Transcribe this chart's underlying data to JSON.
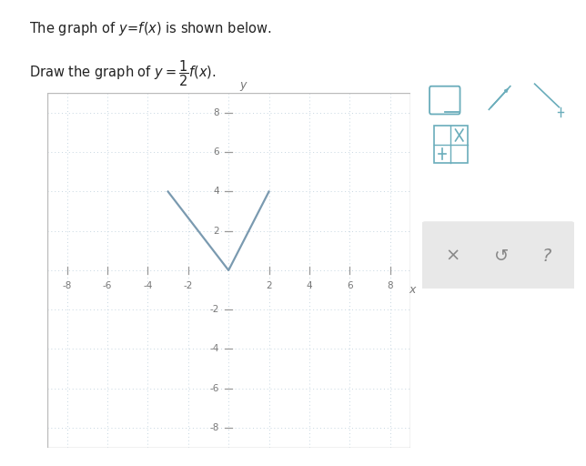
{
  "xlim": [
    -9,
    9
  ],
  "ylim": [
    -9,
    9
  ],
  "xticks": [
    -8,
    -6,
    -4,
    -2,
    2,
    4,
    6,
    8
  ],
  "yticks": [
    -8,
    -6,
    -4,
    -2,
    2,
    4,
    6,
    8
  ],
  "grid_color": "#c5d5e0",
  "axis_color": "#999999",
  "curve_color": "#7a9ab0",
  "curve_x": [
    -3,
    0,
    2
  ],
  "curve_y": [
    4,
    0,
    4
  ],
  "background_color": "#ffffff",
  "plot_bg_color": "#f2f4f0",
  "curve_linewidth": 1.6,
  "xlabel": "x",
  "ylabel": "y",
  "tick_fontsize": 7.5,
  "tick_color": "#777777",
  "panel_bg": "#ffffff",
  "panel_border": "#cccccc",
  "panel_icon_color": "#6aadbb",
  "bottom_bar_bg": "#e8e8e8"
}
